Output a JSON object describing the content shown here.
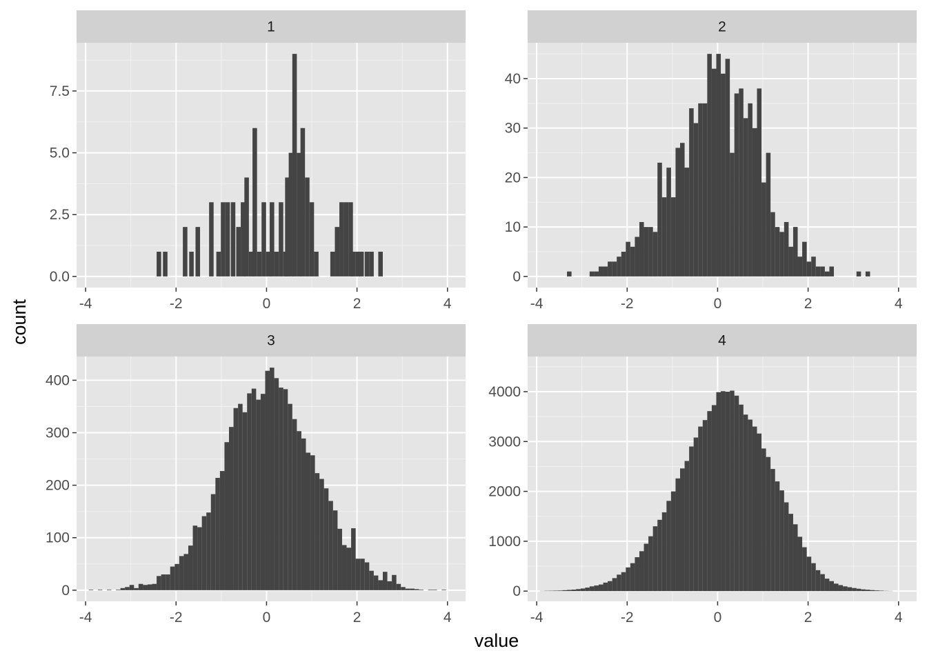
{
  "chart_data": {
    "type": "bar",
    "kind": "faceted histogram",
    "xlabel": "value",
    "ylabel": "count",
    "grid": true,
    "bar_color": "#444444",
    "panel_background": "#e5e5e5",
    "strip_background": "#d1d1d1",
    "panels": [
      {
        "strip": "1",
        "xlim": [
          -4.2,
          4.4
        ],
        "ylim": [
          -0.45,
          9.45
        ],
        "x_ticks": [
          -4,
          -2,
          0,
          2,
          4
        ],
        "x_tick_labels": [
          "-4",
          "-2",
          "0",
          "2",
          "4"
        ],
        "y_ticks": [
          0,
          2.5,
          5,
          7.5
        ],
        "y_tick_labels": [
          "0.0",
          "2.5",
          "5.0",
          "7.5"
        ],
        "bins": [
          [
            -2.38,
            1
          ],
          [
            -2.24,
            1
          ],
          [
            -1.8,
            2
          ],
          [
            -1.66,
            1
          ],
          [
            -1.52,
            2
          ],
          [
            -1.22,
            3
          ],
          [
            -1.06,
            1
          ],
          [
            -0.96,
            3
          ],
          [
            -0.86,
            3
          ],
          [
            -0.74,
            3
          ],
          [
            -0.62,
            2
          ],
          [
            -0.52,
            3
          ],
          [
            -0.44,
            4
          ],
          [
            -0.34,
            1
          ],
          [
            -0.26,
            6
          ],
          [
            -0.16,
            1
          ],
          [
            -0.06,
            3
          ],
          [
            0.04,
            1
          ],
          [
            0.12,
            3
          ],
          [
            0.22,
            1
          ],
          [
            0.32,
            3
          ],
          [
            0.42,
            1
          ],
          [
            0.46,
            4
          ],
          [
            0.54,
            5
          ],
          [
            0.62,
            9
          ],
          [
            0.72,
            5
          ],
          [
            0.8,
            6
          ],
          [
            0.9,
            4
          ],
          [
            1.0,
            3
          ],
          [
            1.1,
            1
          ],
          [
            1.46,
            1
          ],
          [
            1.56,
            2
          ],
          [
            1.66,
            3
          ],
          [
            1.76,
            3
          ],
          [
            1.86,
            3
          ],
          [
            1.92,
            1
          ],
          [
            2.02,
            1
          ],
          [
            2.1,
            1
          ],
          [
            2.22,
            1
          ],
          [
            2.32,
            1
          ],
          [
            2.52,
            1
          ]
        ]
      },
      {
        "strip": "2",
        "xlim": [
          -4.2,
          4.4
        ],
        "ylim": [
          -2.25,
          47.25
        ],
        "x_ticks": [
          -4,
          -2,
          0,
          2,
          4
        ],
        "x_tick_labels": [
          "-4",
          "-2",
          "0",
          "2",
          "4"
        ],
        "y_ticks": [
          0,
          10,
          20,
          30,
          40
        ],
        "y_tick_labels": [
          "0",
          "10",
          "20",
          "30",
          "40"
        ],
        "bins": [
          [
            -3.28,
            1
          ],
          [
            -2.78,
            1
          ],
          [
            -2.68,
            1
          ],
          [
            -2.58,
            2
          ],
          [
            -2.48,
            2
          ],
          [
            -2.38,
            3
          ],
          [
            -2.28,
            3
          ],
          [
            -2.18,
            4
          ],
          [
            -2.08,
            5
          ],
          [
            -1.98,
            7
          ],
          [
            -1.88,
            6
          ],
          [
            -1.78,
            8
          ],
          [
            -1.68,
            11
          ],
          [
            -1.58,
            10
          ],
          [
            -1.48,
            10
          ],
          [
            -1.38,
            9
          ],
          [
            -1.28,
            23
          ],
          [
            -1.18,
            16
          ],
          [
            -1.08,
            22
          ],
          [
            -0.98,
            16
          ],
          [
            -0.88,
            26
          ],
          [
            -0.78,
            27
          ],
          [
            -0.68,
            22
          ],
          [
            -0.58,
            34
          ],
          [
            -0.48,
            31
          ],
          [
            -0.38,
            35
          ],
          [
            -0.28,
            35
          ],
          [
            -0.18,
            45
          ],
          [
            -0.08,
            42
          ],
          [
            0.02,
            45
          ],
          [
            0.12,
            41
          ],
          [
            0.22,
            44
          ],
          [
            0.32,
            25
          ],
          [
            0.42,
            37
          ],
          [
            0.52,
            38
          ],
          [
            0.62,
            32
          ],
          [
            0.72,
            35
          ],
          [
            0.82,
            30
          ],
          [
            0.92,
            38
          ],
          [
            1.02,
            19
          ],
          [
            1.12,
            25
          ],
          [
            1.22,
            13
          ],
          [
            1.32,
            10
          ],
          [
            1.42,
            9
          ],
          [
            1.52,
            11
          ],
          [
            1.62,
            6
          ],
          [
            1.72,
            10
          ],
          [
            1.82,
            4
          ],
          [
            1.92,
            7
          ],
          [
            2.02,
            3
          ],
          [
            2.12,
            4
          ],
          [
            2.22,
            2
          ],
          [
            2.32,
            2
          ],
          [
            2.42,
            1
          ],
          [
            2.52,
            2
          ],
          [
            3.12,
            1
          ],
          [
            3.32,
            1
          ]
        ]
      },
      {
        "strip": "3",
        "xlim": [
          -4.2,
          4.4
        ],
        "ylim": [
          -21.2,
          445.2
        ],
        "x_ticks": [
          -4,
          -2,
          0,
          2,
          4
        ],
        "x_tick_labels": [
          "-4",
          "-2",
          "0",
          "2",
          "4"
        ],
        "y_ticks": [
          0,
          100,
          200,
          300,
          400
        ],
        "y_tick_labels": [
          "0",
          "100",
          "200",
          "300",
          "400"
        ],
        "bins": [
          [
            -3.88,
            1
          ],
          [
            -3.68,
            1
          ],
          [
            -3.48,
            1
          ],
          [
            -3.28,
            1
          ],
          [
            -3.18,
            4
          ],
          [
            -3.08,
            6
          ],
          [
            -2.98,
            10
          ],
          [
            -2.88,
            4
          ],
          [
            -2.78,
            12
          ],
          [
            -2.68,
            10
          ],
          [
            -2.58,
            11
          ],
          [
            -2.48,
            12
          ],
          [
            -2.38,
            27
          ],
          [
            -2.28,
            30
          ],
          [
            -2.18,
            30
          ],
          [
            -2.08,
            45
          ],
          [
            -1.98,
            50
          ],
          [
            -1.88,
            65
          ],
          [
            -1.78,
            69
          ],
          [
            -1.68,
            85
          ],
          [
            -1.58,
            123
          ],
          [
            -1.48,
            120
          ],
          [
            -1.38,
            141
          ],
          [
            -1.28,
            148
          ],
          [
            -1.18,
            183
          ],
          [
            -1.08,
            214
          ],
          [
            -0.98,
            227
          ],
          [
            -0.88,
            282
          ],
          [
            -0.78,
            311
          ],
          [
            -0.68,
            347
          ],
          [
            -0.58,
            355
          ],
          [
            -0.48,
            339
          ],
          [
            -0.38,
            375
          ],
          [
            -0.28,
            384
          ],
          [
            -0.18,
            363
          ],
          [
            -0.08,
            374
          ],
          [
            0.02,
            418
          ],
          [
            0.12,
            424
          ],
          [
            0.22,
            404
          ],
          [
            0.32,
            386
          ],
          [
            0.42,
            383
          ],
          [
            0.52,
            355
          ],
          [
            0.62,
            326
          ],
          [
            0.72,
            303
          ],
          [
            0.82,
            289
          ],
          [
            0.92,
            262
          ],
          [
            1.02,
            257
          ],
          [
            1.12,
            223
          ],
          [
            1.22,
            212
          ],
          [
            1.32,
            194
          ],
          [
            1.42,
            170
          ],
          [
            1.52,
            152
          ],
          [
            1.62,
            117
          ],
          [
            1.72,
            86
          ],
          [
            1.82,
            81
          ],
          [
            1.92,
            118
          ],
          [
            2.02,
            60
          ],
          [
            2.12,
            60
          ],
          [
            2.22,
            53
          ],
          [
            2.32,
            37
          ],
          [
            2.42,
            28
          ],
          [
            2.52,
            19
          ],
          [
            2.62,
            35
          ],
          [
            2.72,
            17
          ],
          [
            2.82,
            29
          ],
          [
            2.92,
            12
          ],
          [
            3.02,
            6
          ],
          [
            3.12,
            3
          ],
          [
            3.22,
            3
          ],
          [
            3.32,
            2
          ],
          [
            3.42,
            1
          ],
          [
            3.62,
            1
          ],
          [
            3.72,
            1
          ],
          [
            3.92,
            1
          ]
        ]
      },
      {
        "strip": "4",
        "xlim": [
          -4.2,
          4.4
        ],
        "ylim": [
          -205,
          4705
        ],
        "x_ticks": [
          -4,
          -2,
          0,
          2,
          4
        ],
        "x_tick_labels": [
          "-4",
          "-2",
          "0",
          "2",
          "4"
        ],
        "y_ticks": [
          0,
          1000,
          2000,
          3000,
          4000
        ],
        "y_tick_labels": [
          "0",
          "1000",
          "2000",
          "3000",
          "4000"
        ],
        "bins": [
          [
            -3.88,
            4
          ],
          [
            -3.78,
            7
          ],
          [
            -3.68,
            8
          ],
          [
            -3.58,
            10
          ],
          [
            -3.48,
            12
          ],
          [
            -3.38,
            18
          ],
          [
            -3.28,
            24
          ],
          [
            -3.18,
            30
          ],
          [
            -3.08,
            40
          ],
          [
            -2.98,
            52
          ],
          [
            -2.88,
            70
          ],
          [
            -2.78,
            95
          ],
          [
            -2.68,
            112
          ],
          [
            -2.58,
            132
          ],
          [
            -2.48,
            170
          ],
          [
            -2.38,
            200
          ],
          [
            -2.28,
            260
          ],
          [
            -2.18,
            330
          ],
          [
            -2.08,
            380
          ],
          [
            -1.98,
            475
          ],
          [
            -1.88,
            560
          ],
          [
            -1.78,
            680
          ],
          [
            -1.68,
            800
          ],
          [
            -1.58,
            950
          ],
          [
            -1.48,
            1100
          ],
          [
            -1.38,
            1300
          ],
          [
            -1.28,
            1430
          ],
          [
            -1.18,
            1580
          ],
          [
            -1.08,
            1810
          ],
          [
            -0.98,
            2000
          ],
          [
            -0.88,
            2260
          ],
          [
            -0.78,
            2460
          ],
          [
            -0.68,
            2610
          ],
          [
            -0.58,
            2900
          ],
          [
            -0.48,
            3080
          ],
          [
            -0.38,
            3300
          ],
          [
            -0.28,
            3430
          ],
          [
            -0.18,
            3610
          ],
          [
            -0.08,
            3730
          ],
          [
            0.02,
            3990
          ],
          [
            0.12,
            4010
          ],
          [
            0.22,
            4000
          ],
          [
            0.32,
            4020
          ],
          [
            0.42,
            3920
          ],
          [
            0.52,
            3740
          ],
          [
            0.62,
            3540
          ],
          [
            0.72,
            3440
          ],
          [
            0.82,
            3300
          ],
          [
            0.92,
            3160
          ],
          [
            1.02,
            2860
          ],
          [
            1.12,
            2690
          ],
          [
            1.22,
            2450
          ],
          [
            1.32,
            2200
          ],
          [
            1.42,
            2020
          ],
          [
            1.52,
            1780
          ],
          [
            1.62,
            1550
          ],
          [
            1.72,
            1340
          ],
          [
            1.82,
            1090
          ],
          [
            1.92,
            880
          ],
          [
            2.02,
            690
          ],
          [
            2.12,
            560
          ],
          [
            2.22,
            420
          ],
          [
            2.32,
            340
          ],
          [
            2.42,
            250
          ],
          [
            2.52,
            200
          ],
          [
            2.62,
            150
          ],
          [
            2.72,
            120
          ],
          [
            2.82,
            95
          ],
          [
            2.92,
            78
          ],
          [
            3.02,
            62
          ],
          [
            3.12,
            48
          ],
          [
            3.22,
            35
          ],
          [
            3.32,
            28
          ],
          [
            3.42,
            20
          ],
          [
            3.52,
            14
          ],
          [
            3.62,
            10
          ],
          [
            3.72,
            6
          ],
          [
            3.82,
            4
          ]
        ]
      }
    ]
  }
}
